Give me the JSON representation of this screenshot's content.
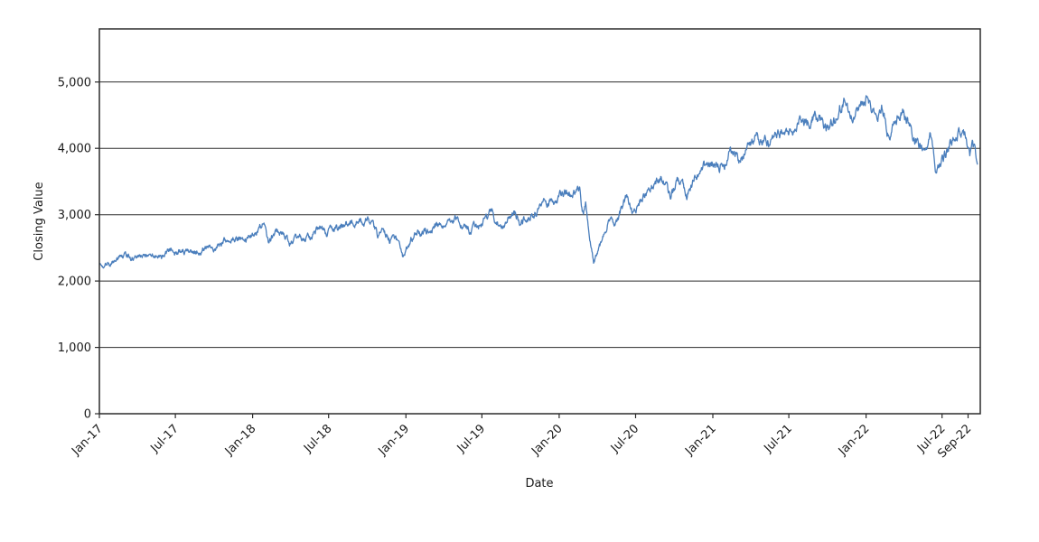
{
  "chart_data": {
    "type": "line",
    "title": "",
    "xlabel": "Date",
    "ylabel": "Closing Value",
    "legend": "none",
    "grid": "horizontal-black-solid",
    "background": "#ffffff",
    "line_color": "#4a7ebc",
    "xlim": [
      "2017-01-01",
      "2022-09-30"
    ],
    "ylim": [
      0,
      5800
    ],
    "x_ticks": [
      {
        "label": "Jan-17",
        "date": "2017-01-01"
      },
      {
        "label": "Jul-17",
        "date": "2017-07-01"
      },
      {
        "label": "Jan-18",
        "date": "2018-01-01"
      },
      {
        "label": "Jul-18",
        "date": "2018-07-01"
      },
      {
        "label": "Jan-19",
        "date": "2019-01-01"
      },
      {
        "label": "Jul-19",
        "date": "2019-07-01"
      },
      {
        "label": "Jan-20",
        "date": "2020-01-01"
      },
      {
        "label": "Jul-20",
        "date": "2020-07-01"
      },
      {
        "label": "Jan-21",
        "date": "2021-01-01"
      },
      {
        "label": "Jul-21",
        "date": "2021-07-01"
      },
      {
        "label": "Jan-22",
        "date": "2022-01-01"
      },
      {
        "label": "Jul-22",
        "date": "2022-07-01"
      },
      {
        "label": "Sep-22",
        "date": "2022-09-01"
      }
    ],
    "y_ticks": [
      {
        "label": "0",
        "value": 0
      },
      {
        "label": "1,000",
        "value": 1000
      },
      {
        "label": "2,000",
        "value": 2000
      },
      {
        "label": "3,000",
        "value": 3000
      },
      {
        "label": "4,000",
        "value": 4000
      },
      {
        "label": "5,000",
        "value": 5000
      }
    ],
    "series": [
      {
        "name": "Closing Value",
        "points": [
          [
            "2017-01-03",
            2258
          ],
          [
            "2017-02-02",
            2280
          ],
          [
            "2017-03-01",
            2396
          ],
          [
            "2017-03-27",
            2341
          ],
          [
            "2017-04-24",
            2374
          ],
          [
            "2017-05-17",
            2357
          ],
          [
            "2017-06-19",
            2453
          ],
          [
            "2017-07-06",
            2410
          ],
          [
            "2017-08-07",
            2481
          ],
          [
            "2017-08-18",
            2426
          ],
          [
            "2017-09-25",
            2497
          ],
          [
            "2017-10-27",
            2581
          ],
          [
            "2017-11-28",
            2627
          ],
          [
            "2017-12-29",
            2674
          ],
          [
            "2018-01-26",
            2873
          ],
          [
            "2018-02-08",
            2581
          ],
          [
            "2018-02-26",
            2780
          ],
          [
            "2018-04-02",
            2582
          ],
          [
            "2018-05-03",
            2630
          ],
          [
            "2018-06-12",
            2786
          ],
          [
            "2018-06-27",
            2700
          ],
          [
            "2018-08-07",
            2858
          ],
          [
            "2018-09-20",
            2931
          ],
          [
            "2018-10-03",
            2925
          ],
          [
            "2018-10-29",
            2641
          ],
          [
            "2018-11-07",
            2814
          ],
          [
            "2018-11-23",
            2633
          ],
          [
            "2018-12-03",
            2790
          ],
          [
            "2018-12-24",
            2351
          ],
          [
            "2019-01-18",
            2671
          ],
          [
            "2019-02-25",
            2796
          ],
          [
            "2019-03-22",
            2801
          ],
          [
            "2019-04-30",
            2946
          ],
          [
            "2019-06-03",
            2744
          ],
          [
            "2019-07-26",
            3026
          ],
          [
            "2019-08-05",
            2845
          ],
          [
            "2019-08-23",
            2847
          ],
          [
            "2019-09-19",
            3007
          ],
          [
            "2019-10-02",
            2888
          ],
          [
            "2019-11-27",
            3154
          ],
          [
            "2019-12-31",
            3231
          ],
          [
            "2020-01-17",
            3330
          ],
          [
            "2020-01-31",
            3226
          ],
          [
            "2020-02-19",
            3386
          ],
          [
            "2020-02-28",
            2954
          ],
          [
            "2020-03-04",
            3130
          ],
          [
            "2020-03-23",
            2237
          ],
          [
            "2020-04-29",
            2940
          ],
          [
            "2020-05-13",
            2820
          ],
          [
            "2020-06-08",
            3232
          ],
          [
            "2020-06-26",
            3009
          ],
          [
            "2020-07-22",
            3276
          ],
          [
            "2020-09-02",
            3581
          ],
          [
            "2020-09-23",
            3237
          ],
          [
            "2020-10-12",
            3534
          ],
          [
            "2020-10-30",
            3270
          ],
          [
            "2020-11-27",
            3638
          ],
          [
            "2020-12-31",
            3756
          ],
          [
            "2021-01-29",
            3714
          ],
          [
            "2021-02-12",
            3935
          ],
          [
            "2021-03-04",
            3768
          ],
          [
            "2021-04-16",
            4185
          ],
          [
            "2021-05-12",
            4063
          ],
          [
            "2021-06-14",
            4255
          ],
          [
            "2021-06-18",
            4166
          ],
          [
            "2021-07-26",
            4422
          ],
          [
            "2021-08-18",
            4400
          ],
          [
            "2021-09-02",
            4537
          ],
          [
            "2021-10-04",
            4300
          ],
          [
            "2021-11-08",
            4701
          ],
          [
            "2021-12-03",
            4538
          ],
          [
            "2021-12-29",
            4793
          ],
          [
            "2022-01-03",
            4797
          ],
          [
            "2022-01-27",
            4327
          ],
          [
            "2022-02-09",
            4587
          ],
          [
            "2022-02-23",
            4226
          ],
          [
            "2022-03-29",
            4631
          ],
          [
            "2022-04-29",
            4132
          ],
          [
            "2022-05-19",
            3901
          ],
          [
            "2022-06-02",
            4177
          ],
          [
            "2022-06-16",
            3667
          ],
          [
            "2022-08-16",
            4305
          ],
          [
            "2022-09-06",
            3908
          ],
          [
            "2022-09-12",
            4110
          ],
          [
            "2022-09-23",
            3693
          ]
        ]
      }
    ]
  }
}
